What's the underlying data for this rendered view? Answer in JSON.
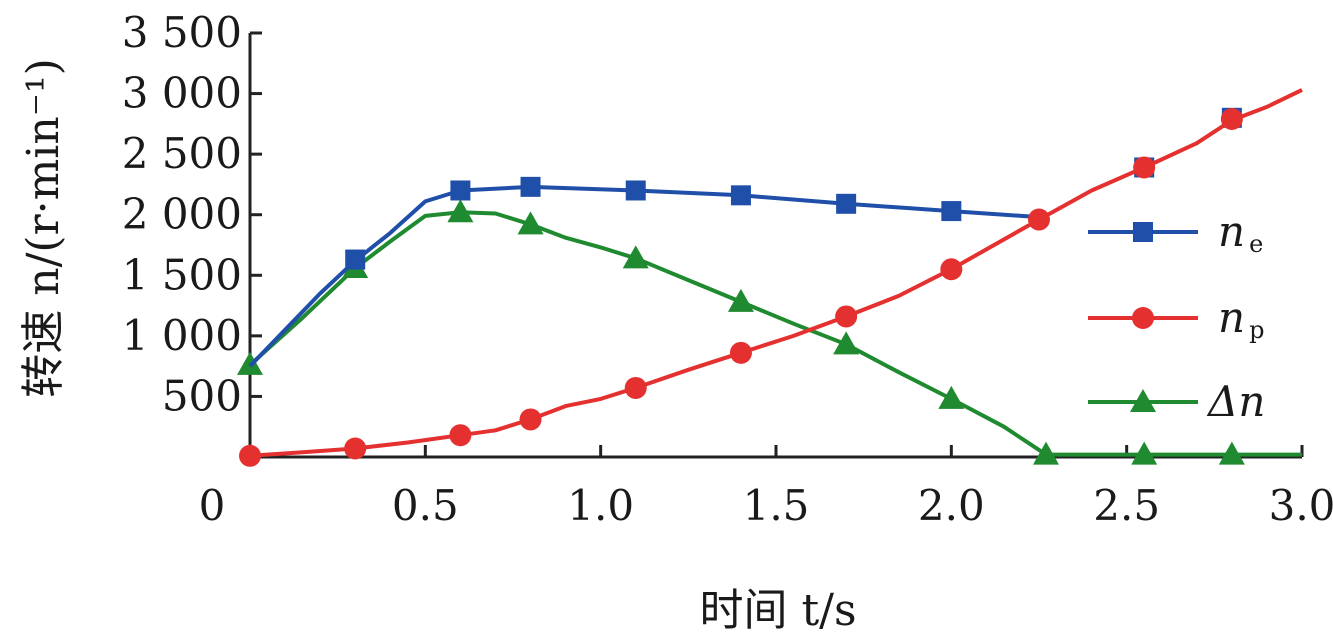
{
  "chart_data": {
    "type": "line",
    "xlabel": "时间 t/s",
    "ylabel": "转速 n/(r·min⁻¹)",
    "xlim": [
      0,
      3.0
    ],
    "ylim": [
      0,
      3500
    ],
    "x_ticks": [
      "0",
      "0.5",
      "1.0",
      "1.5",
      "2.0",
      "2.5",
      "3.0"
    ],
    "y_ticks": [
      "500",
      "1 000",
      "1 500",
      "2 000",
      "2 500",
      "3 000",
      "3 500"
    ],
    "legend_position": "right",
    "series": [
      {
        "name": "ne",
        "label_main": "n",
        "label_sub": "e",
        "color": "#1f4fa8",
        "marker": "square",
        "line": [
          [
            0,
            750
          ],
          [
            0.1,
            1050
          ],
          [
            0.2,
            1350
          ],
          [
            0.3,
            1620
          ],
          [
            0.4,
            1850
          ],
          [
            0.5,
            2110
          ],
          [
            0.6,
            2200
          ],
          [
            0.8,
            2230
          ],
          [
            1.1,
            2200
          ],
          [
            1.4,
            2160
          ],
          [
            1.7,
            2090
          ],
          [
            2.0,
            2030
          ],
          [
            2.25,
            1980
          ]
        ],
        "markers": [
          [
            0.3,
            1630
          ],
          [
            0.6,
            2200
          ],
          [
            0.8,
            2230
          ],
          [
            1.1,
            2200
          ],
          [
            1.4,
            2160
          ],
          [
            1.7,
            2090
          ],
          [
            2.0,
            2030
          ],
          [
            2.55,
            2390
          ],
          [
            2.8,
            2800
          ]
        ]
      },
      {
        "name": "np",
        "label_main": "n",
        "label_sub": "p",
        "color": "#e53030",
        "marker": "circle",
        "line": [
          [
            0,
            10
          ],
          [
            0.15,
            40
          ],
          [
            0.3,
            70
          ],
          [
            0.45,
            120
          ],
          [
            0.6,
            180
          ],
          [
            0.7,
            220
          ],
          [
            0.8,
            310
          ],
          [
            0.9,
            420
          ],
          [
            1.0,
            480
          ],
          [
            1.1,
            570
          ],
          [
            1.25,
            720
          ],
          [
            1.4,
            860
          ],
          [
            1.55,
            1000
          ],
          [
            1.7,
            1160
          ],
          [
            1.85,
            1330
          ],
          [
            2.0,
            1550
          ],
          [
            2.25,
            1960
          ],
          [
            2.4,
            2200
          ],
          [
            2.55,
            2390
          ],
          [
            2.7,
            2590
          ],
          [
            2.8,
            2780
          ],
          [
            2.9,
            2890
          ],
          [
            3.0,
            3030
          ]
        ],
        "markers": [
          [
            0,
            10
          ],
          [
            0.3,
            70
          ],
          [
            0.6,
            180
          ],
          [
            0.8,
            310
          ],
          [
            1.1,
            570
          ],
          [
            1.4,
            860
          ],
          [
            1.7,
            1160
          ],
          [
            2.0,
            1550
          ],
          [
            2.25,
            1960
          ],
          [
            2.55,
            2390
          ],
          [
            2.8,
            2790
          ]
        ]
      },
      {
        "name": "Δn",
        "label_main": "Δn",
        "label_sub": "",
        "color": "#1f8a2f",
        "marker": "triangle",
        "line": [
          [
            0,
            760
          ],
          [
            0.15,
            1150
          ],
          [
            0.3,
            1560
          ],
          [
            0.4,
            1780
          ],
          [
            0.5,
            1990
          ],
          [
            0.6,
            2020
          ],
          [
            0.7,
            2010
          ],
          [
            0.8,
            1920
          ],
          [
            0.9,
            1810
          ],
          [
            1.0,
            1730
          ],
          [
            1.1,
            1640
          ],
          [
            1.25,
            1460
          ],
          [
            1.4,
            1280
          ],
          [
            1.55,
            1100
          ],
          [
            1.7,
            930
          ],
          [
            1.85,
            700
          ],
          [
            2.0,
            480
          ],
          [
            2.15,
            250
          ],
          [
            2.27,
            20
          ],
          [
            2.55,
            20
          ],
          [
            2.8,
            20
          ],
          [
            3.0,
            20
          ]
        ],
        "markers": [
          [
            0,
            760
          ],
          [
            0.3,
            1560
          ],
          [
            0.6,
            2020
          ],
          [
            0.8,
            1920
          ],
          [
            1.1,
            1640
          ],
          [
            1.4,
            1280
          ],
          [
            1.7,
            930
          ],
          [
            2.0,
            480
          ],
          [
            2.27,
            20
          ],
          [
            2.55,
            20
          ],
          [
            2.8,
            20
          ]
        ]
      }
    ]
  }
}
